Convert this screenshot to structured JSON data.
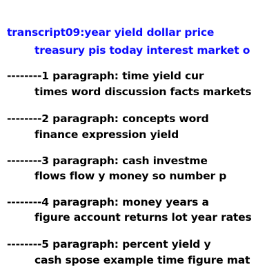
{
  "header": {
    "line1": "transcript09:year yield dollar price",
    "line2": "treasury pis today interest market o"
  },
  "paragraphs": [
    {
      "line1": "--------1 paragraph: time yield cur",
      "line2": "times word discussion facts markets"
    },
    {
      "line1": "--------2 paragraph: concepts word",
      "line2": "finance expression yield"
    },
    {
      "line1": "--------3 paragraph: cash investme",
      "line2": "flows flow y money so number p"
    },
    {
      "line1": "--------4 paragraph: money years a",
      "line2": "figure account returns lot year rates"
    },
    {
      "line1": "--------5 paragraph: percent yield y",
      "line2": "cash spose example time figure mat"
    }
  ],
  "colors": {
    "header": "#0b0bff",
    "body": "#000000",
    "background": "#ffffff"
  }
}
